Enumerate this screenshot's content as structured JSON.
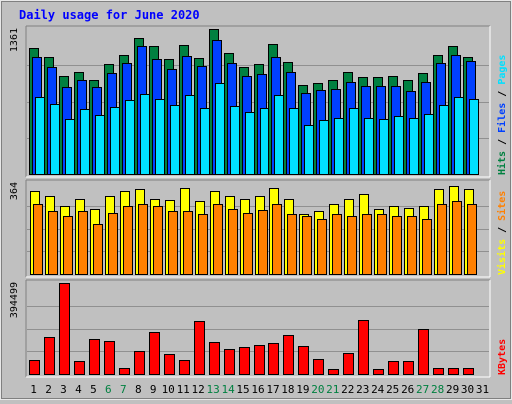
{
  "chart_data": {
    "type": "bar",
    "title": "Daily usage for June 2020",
    "colors": {
      "background": "#c0c0c0",
      "panel": "#c0c0c0",
      "title": "#0000ff",
      "hits": "#008040",
      "files": "#0040ff",
      "pages": "#00e0ff",
      "visits": "#ffff00",
      "sites": "#ff8000",
      "kbytes": "#ff0000",
      "weekend_label": "#008040",
      "weekday_label": "#000000"
    },
    "x": [
      "1",
      "2",
      "3",
      "4",
      "5",
      "6",
      "7",
      "8",
      "9",
      "10",
      "11",
      "12",
      "13",
      "14",
      "15",
      "16",
      "17",
      "18",
      "19",
      "20",
      "21",
      "22",
      "23",
      "24",
      "25",
      "26",
      "27",
      "28",
      "29",
      "30",
      "31"
    ],
    "weekend_days": [
      "6",
      "7",
      "13",
      "14",
      "20",
      "21",
      "27",
      "28"
    ],
    "panels": [
      {
        "name": "hits-files-pages",
        "ymax": 1361,
        "ymax_label": "1361",
        "side_labels": [
          "Hits",
          "Files",
          "Pages"
        ],
        "separator": "/",
        "series": [
          {
            "name": "Hits",
            "values": [
              1180,
              1100,
              920,
              960,
              880,
              1030,
              1120,
              1280,
              1200,
              1080,
              1210,
              1090,
              1361,
              1140,
              1000,
              1030,
              1220,
              1050,
              840,
              850,
              880,
              960,
              910,
              910,
              920,
              880,
              950,
              1120,
              1200,
              1100,
              null
            ]
          },
          {
            "name": "Files",
            "values": [
              1100,
              1000,
              820,
              880,
              820,
              950,
              1040,
              1200,
              1080,
              990,
              1110,
              1010,
              1260,
              1040,
              920,
              940,
              1100,
              960,
              760,
              790,
              800,
              860,
              830,
              830,
              830,
              780,
              860,
              1040,
              1120,
              1060,
              null
            ]
          },
          {
            "name": "Pages",
            "values": [
              720,
              660,
              520,
              610,
              550,
              630,
              690,
              750,
              700,
              650,
              740,
              620,
              850,
              640,
              580,
              620,
              740,
              620,
              460,
              510,
              530,
              620,
              530,
              520,
              540,
              530,
              560,
              650,
              720,
              700,
              null
            ]
          }
        ]
      },
      {
        "name": "visits-sites",
        "ymax": 364,
        "ymax_label": "364",
        "side_labels": [
          "Visits",
          "Sites"
        ],
        "separator": "/",
        "series": [
          {
            "name": "Visits",
            "values": [
              330,
              310,
              270,
              300,
              260,
              310,
              330,
              340,
              300,
              295,
              345,
              290,
              330,
              310,
              300,
              310,
              345,
              300,
              240,
              250,
              280,
              300,
              320,
              260,
              270,
              265,
              270,
              340,
              350,
              340,
              null
            ]
          },
          {
            "name": "Sites",
            "values": [
              280,
              250,
              230,
              250,
              200,
              245,
              270,
              280,
              270,
              250,
              250,
              240,
              280,
              260,
              245,
              255,
              280,
              240,
              230,
              220,
              240,
              230,
              240,
              240,
              230,
              230,
              220,
              280,
              290,
              280,
              null
            ]
          }
        ]
      },
      {
        "name": "kbytes",
        "ymax": 394499,
        "ymax_label": "394499",
        "side_labels": [
          "KBytes"
        ],
        "separator": "",
        "series": [
          {
            "name": "KBytes",
            "values": [
              60000,
              160000,
              394499,
              55000,
              150000,
              145000,
              25000,
              100000,
              180000,
              85000,
              60000,
              230000,
              140000,
              110000,
              115000,
              125000,
              135000,
              170000,
              120000,
              65000,
              20000,
              90000,
              235000,
              20000,
              55000,
              55000,
              195000,
              25000,
              25000,
              25000,
              null
            ]
          }
        ]
      }
    ]
  }
}
